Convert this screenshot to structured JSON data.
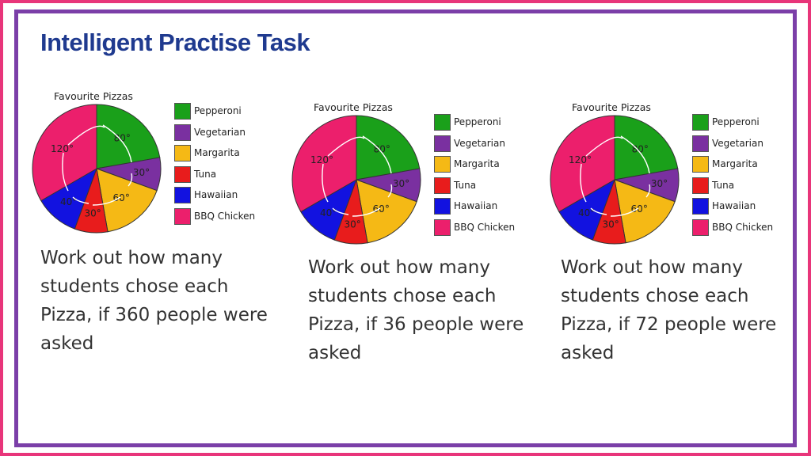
{
  "slide": {
    "title": "Intelligent Practise Task"
  },
  "colors": {
    "outer_border": "#e8357a",
    "inner_border": "#7b3fa8",
    "title": "#1f3a8f"
  },
  "chart_data": [
    {
      "type": "pie",
      "title": "Favourite Pizzas",
      "categories": [
        "Pepperoni",
        "Vegetarian",
        "Margarita",
        "Tuna",
        "Hawaiian",
        "BBQ Chicken"
      ],
      "values": [
        80,
        30,
        60,
        30,
        40,
        120
      ],
      "slice_labels": [
        "80°",
        "30°",
        "60°",
        "30°",
        "40°",
        "120°"
      ],
      "unit": "degrees",
      "colors": [
        "#1aa01a",
        "#7a30a0",
        "#f5b915",
        "#e81c1c",
        "#1212e0",
        "#ec1f6c"
      ],
      "legend_position": "right"
    },
    {
      "type": "pie",
      "title": "Favourite Pizzas",
      "categories": [
        "Pepperoni",
        "Vegetarian",
        "Margarita",
        "Tuna",
        "Hawaiian",
        "BBQ Chicken"
      ],
      "values": [
        80,
        30,
        60,
        30,
        40,
        120
      ],
      "slice_labels": [
        "80°",
        "30°",
        "60°",
        "30°",
        "40°",
        "120°"
      ],
      "unit": "degrees",
      "colors": [
        "#1aa01a",
        "#7a30a0",
        "#f5b915",
        "#e81c1c",
        "#1212e0",
        "#ec1f6c"
      ],
      "legend_position": "right"
    },
    {
      "type": "pie",
      "title": "Favourite Pizzas",
      "categories": [
        "Pepperoni",
        "Vegetarian",
        "Margarita",
        "Tuna",
        "Hawaiian",
        "BBQ Chicken"
      ],
      "values": [
        80,
        30,
        60,
        30,
        40,
        120
      ],
      "slice_labels": [
        "80°",
        "30°",
        "60°",
        "30°",
        "40°",
        "120°"
      ],
      "unit": "degrees",
      "colors": [
        "#1aa01a",
        "#7a30a0",
        "#f5b915",
        "#e81c1c",
        "#1212e0",
        "#ec1f6c"
      ],
      "legend_position": "right"
    }
  ],
  "questions": [
    "Work out how many students chose each Pizza, if 360 people were asked",
    "Work out how many students chose each Pizza, if 36 people were asked",
    "Work out how many students chose each Pizza, if 72 people were asked"
  ]
}
